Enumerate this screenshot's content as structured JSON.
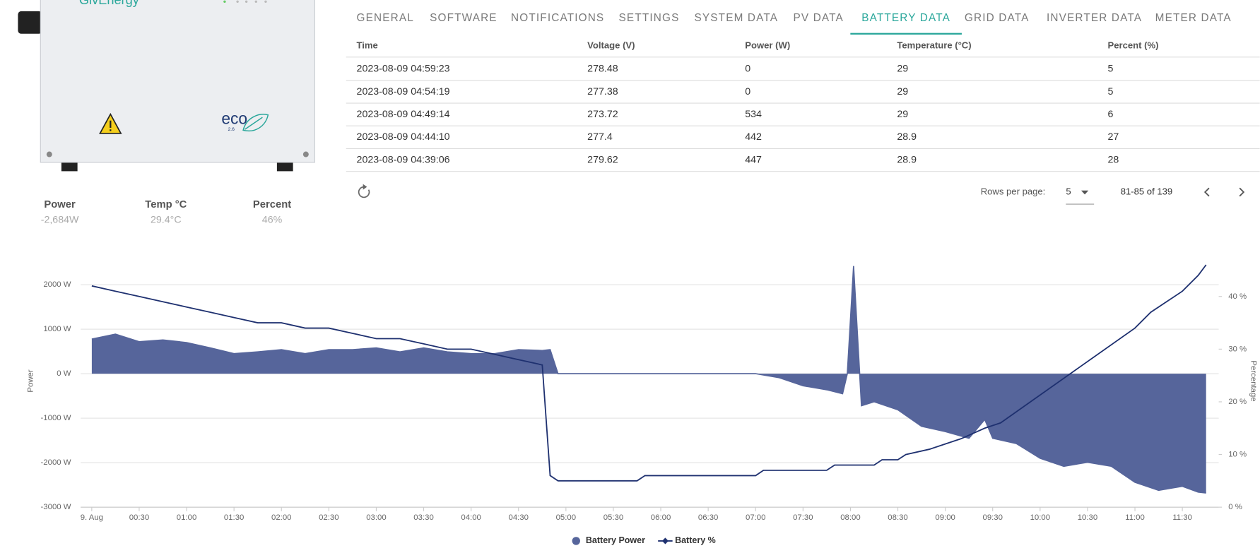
{
  "device": {
    "brand": "GivEnergy",
    "model": "eco",
    "version": "2.6"
  },
  "stats": [
    {
      "label": "Power",
      "value": "-2,684W"
    },
    {
      "label": "Temp °C",
      "value": "29.4°C"
    },
    {
      "label": "Percent",
      "value": "46%"
    }
  ],
  "tabs": [
    "GENERAL",
    "SOFTWARE",
    "NOTIFICATIONS",
    "SETTINGS",
    "SYSTEM DATA",
    "PV DATA",
    "BATTERY DATA",
    "GRID DATA",
    "INVERTER DATA",
    "METER DATA"
  ],
  "active_tab": 6,
  "table": {
    "columns": [
      "Time",
      "Voltage (V)",
      "Power (W)",
      "Temperature (°C)",
      "Percent (%)"
    ],
    "rows": [
      [
        "2023-08-09 04:59:23",
        "278.48",
        "0",
        "29",
        "5"
      ],
      [
        "2023-08-09 04:54:19",
        "277.38",
        "0",
        "29",
        "5"
      ],
      [
        "2023-08-09 04:49:14",
        "273.72",
        "534",
        "29",
        "6"
      ],
      [
        "2023-08-09 04:44:10",
        "277.4",
        "442",
        "28.9",
        "27"
      ],
      [
        "2023-08-09 04:39:06",
        "279.62",
        "447",
        "28.9",
        "28"
      ]
    ]
  },
  "pagination": {
    "rows_per_page_label": "Rows per page:",
    "rows_per_page": "5",
    "range": "81-85 of 139"
  },
  "chart_data": {
    "type": "area",
    "ylabel": "Power",
    "y2label": "Percentage",
    "xlim": [
      -7,
      713
    ],
    "xticks": [
      {
        "value": 0,
        "label": "9. Aug"
      },
      {
        "value": 30,
        "label": "00:30"
      },
      {
        "value": 60,
        "label": "01:00"
      },
      {
        "value": 90,
        "label": "01:30"
      },
      {
        "value": 120,
        "label": "02:00"
      },
      {
        "value": 150,
        "label": "02:30"
      },
      {
        "value": 180,
        "label": "03:00"
      },
      {
        "value": 210,
        "label": "03:30"
      },
      {
        "value": 240,
        "label": "04:00"
      },
      {
        "value": 270,
        "label": "04:30"
      },
      {
        "value": 300,
        "label": "05:00"
      },
      {
        "value": 330,
        "label": "05:30"
      },
      {
        "value": 360,
        "label": "06:00"
      },
      {
        "value": 390,
        "label": "06:30"
      },
      {
        "value": 420,
        "label": "07:00"
      },
      {
        "value": 450,
        "label": "07:30"
      },
      {
        "value": 480,
        "label": "08:00"
      },
      {
        "value": 510,
        "label": "08:30"
      },
      {
        "value": 540,
        "label": "09:00"
      },
      {
        "value": 570,
        "label": "09:30"
      },
      {
        "value": 600,
        "label": "10:00"
      },
      {
        "value": 630,
        "label": "10:30"
      },
      {
        "value": 660,
        "label": "11:00"
      },
      {
        "value": 690,
        "label": "11:30"
      }
    ],
    "ylim": [
      -3000,
      2600
    ],
    "yticks": [
      {
        "value": 2000,
        "label": "2000 W"
      },
      {
        "value": 1000,
        "label": "1000 W"
      },
      {
        "value": 0,
        "label": "0 W"
      },
      {
        "value": -1000,
        "label": "-1000 W"
      },
      {
        "value": -2000,
        "label": "-2000 W"
      },
      {
        "value": -3000,
        "label": "-3000 W"
      }
    ],
    "y2lim": [
      0,
      47.3
    ],
    "y2ticks": [
      {
        "value": 40,
        "label": "40 %"
      },
      {
        "value": 30,
        "label": "30 %"
      },
      {
        "value": 20,
        "label": "20 %"
      },
      {
        "value": 10,
        "label": "10 %"
      },
      {
        "value": 0,
        "label": "0 %"
      }
    ],
    "grid": true,
    "series": [
      {
        "name": "Battery Power",
        "color": "#56659b",
        "kind": "area",
        "x": [
          0,
          15,
          30,
          45,
          60,
          75,
          90,
          105,
          120,
          135,
          150,
          165,
          180,
          195,
          210,
          225,
          240,
          255,
          270,
          285,
          290,
          295,
          420,
          435,
          450,
          465,
          475,
          478,
          482,
          487,
          495,
          510,
          525,
          540,
          555,
          565,
          570,
          585,
          600,
          615,
          630,
          645,
          660,
          675,
          690,
          700,
          705
        ],
        "values": [
          780,
          890,
          720,
          760,
          700,
          580,
          450,
          490,
          540,
          450,
          540,
          540,
          580,
          490,
          580,
          490,
          450,
          450,
          540,
          520,
          540,
          0,
          0,
          -90,
          -270,
          -360,
          -450,
          0,
          2420,
          -720,
          -630,
          -810,
          -1180,
          -1300,
          -1450,
          -1030,
          -1450,
          -1570,
          -1900,
          -2080,
          -1990,
          -2080,
          -2440,
          -2620,
          -2530,
          -2660,
          -2680
        ]
      },
      {
        "name": "Battery %",
        "color": "#1f3170",
        "kind": "line",
        "axis": "y2",
        "x": [
          0,
          15,
          30,
          45,
          60,
          75,
          90,
          105,
          120,
          135,
          150,
          165,
          180,
          195,
          210,
          225,
          240,
          255,
          270,
          285,
          290,
          295,
          345,
          350,
          420,
          425,
          465,
          470,
          495,
          500,
          510,
          515,
          530,
          540,
          550,
          565,
          575,
          660,
          670,
          680,
          690,
          700,
          705
        ],
        "values": [
          42,
          41,
          40,
          39,
          38,
          37,
          36,
          35,
          35,
          34,
          34,
          33,
          32,
          32,
          31,
          30,
          30,
          29,
          28,
          27,
          6,
          5,
          5,
          6,
          6,
          7,
          7,
          8,
          8,
          9,
          9,
          10,
          11,
          12,
          13,
          15,
          16,
          34,
          37,
          39,
          41,
          44,
          46
        ]
      }
    ]
  }
}
